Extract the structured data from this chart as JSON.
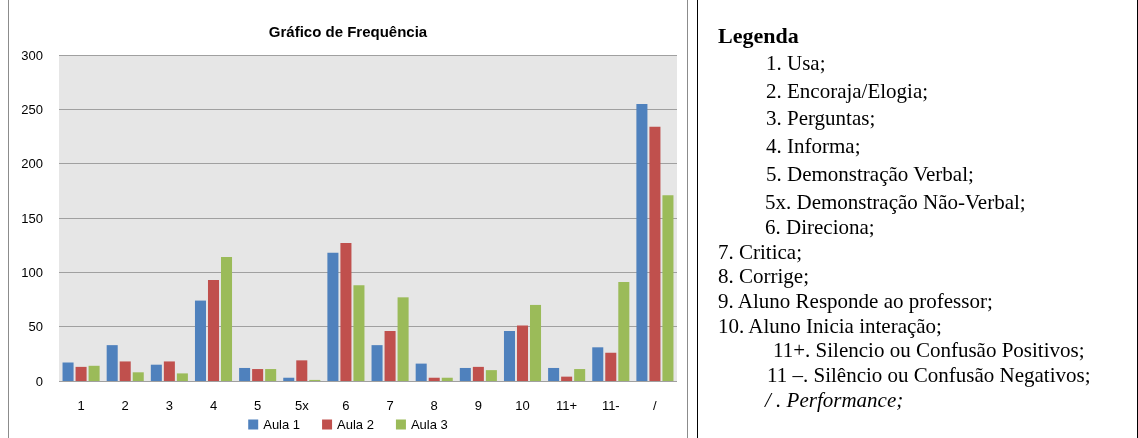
{
  "chart_data": [
    {
      "type": "bar",
      "title": "Gráfico de Frequência",
      "categories": [
        "1",
        "2",
        "3",
        "4",
        "5",
        "5x",
        "6",
        "7",
        "8",
        "9",
        "10",
        "11+",
        "11-",
        "/"
      ],
      "series": [
        {
          "name": "Aula 1",
          "color": "#4f81bd",
          "values": [
            17,
            33,
            15,
            74,
            12,
            3,
            118,
            33,
            16,
            12,
            46,
            12,
            31,
            255
          ]
        },
        {
          "name": "Aula 2",
          "color": "#c0504d",
          "values": [
            13,
            18,
            18,
            93,
            11,
            19,
            127,
            46,
            3,
            13,
            51,
            4,
            26,
            234
          ]
        },
        {
          "name": "Aula 3",
          "color": "#9bbb59",
          "values": [
            14,
            8,
            7,
            114,
            11,
            1,
            88,
            77,
            3,
            10,
            70,
            11,
            91,
            171
          ]
        }
      ],
      "ylim": [
        0,
        300
      ],
      "yticks": [
        0,
        50,
        100,
        150,
        200,
        250,
        300
      ],
      "grid": "y",
      "legend": "bottom"
    },
    {
      "type": "other",
      "title": "Legenda",
      "annotations": [
        "1. Usa;",
        "2. Encoraja/Elogia;",
        "3. Perguntas;",
        "4. Informa;",
        "5. Demonstração Verbal;",
        "5x. Demonstração Não-Verbal;",
        "6. Direciona;",
        "7. Critica;",
        "8. Corrige;",
        "9. Aluno Responde ao professor;",
        "10. Aluno Inicia interação;",
        "11+. Silencio ou Confusão Positivos;",
        "11 –. Silêncio ou Confusão Negativos;",
        "/ . Performance;"
      ]
    }
  ]
}
